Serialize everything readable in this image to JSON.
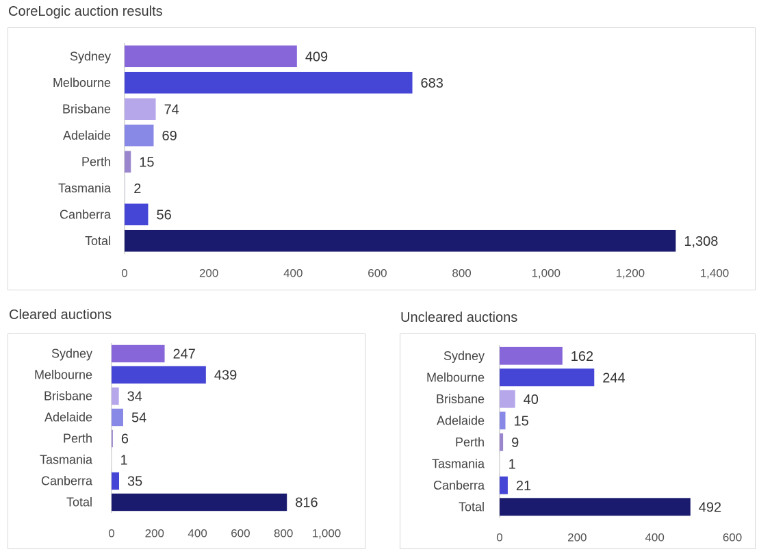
{
  "chart_data": [
    {
      "id": "main",
      "type": "bar",
      "orientation": "horizontal",
      "title": "CoreLogic auction results",
      "categories": [
        "Sydney",
        "Melbourne",
        "Brisbane",
        "Adelaide",
        "Perth",
        "Tasmania",
        "Canberra",
        "Total"
      ],
      "values": [
        409,
        683,
        74,
        69,
        15,
        2,
        56,
        1308
      ],
      "value_labels": [
        "409",
        "683",
        "74",
        "69",
        "15",
        "2",
        "56",
        "1,308"
      ],
      "xlim": [
        0,
        1400
      ],
      "ticks": [
        0,
        200,
        400,
        600,
        800,
        1000,
        1200,
        1400
      ],
      "tick_labels": [
        "0",
        "200",
        "400",
        "600",
        "800",
        "1,000",
        "1,200",
        "1,400"
      ],
      "grid": false,
      "legend": "none"
    },
    {
      "id": "cleared",
      "type": "bar",
      "orientation": "horizontal",
      "title": "Cleared auctions",
      "categories": [
        "Sydney",
        "Melbourne",
        "Brisbane",
        "Adelaide",
        "Perth",
        "Tasmania",
        "Canberra",
        "Total"
      ],
      "values": [
        247,
        439,
        34,
        54,
        6,
        1,
        35,
        816
      ],
      "value_labels": [
        "247",
        "439",
        "34",
        "54",
        "6",
        "1",
        "35",
        "816"
      ],
      "xlim": [
        0,
        1000
      ],
      "ticks": [
        0,
        200,
        400,
        600,
        800,
        1000
      ],
      "tick_labels": [
        "0",
        "200",
        "400",
        "600",
        "800",
        "1,000"
      ],
      "grid": false,
      "legend": "none"
    },
    {
      "id": "uncleared",
      "type": "bar",
      "orientation": "horizontal",
      "title": "Uncleared auctions",
      "categories": [
        "Sydney",
        "Melbourne",
        "Brisbane",
        "Adelaide",
        "Perth",
        "Tasmania",
        "Canberra",
        "Total"
      ],
      "values": [
        162,
        244,
        40,
        15,
        9,
        1,
        21,
        492
      ],
      "value_labels": [
        "162",
        "244",
        "40",
        "15",
        "9",
        "1",
        "21",
        "492"
      ],
      "xlim": [
        0,
        600
      ],
      "ticks": [
        0,
        200,
        400,
        600
      ],
      "tick_labels": [
        "0",
        "200",
        "400",
        "600"
      ],
      "grid": false,
      "legend": "none"
    }
  ],
  "colors": {
    "Sydney": "#8666d8",
    "Melbourne": "#4646d6",
    "Brisbane": "#b6a6ea",
    "Adelaide": "#8888e6",
    "Perth": "#9a86cc",
    "Tasmania": "#e4e4ee",
    "Canberra": "#4646d6",
    "Total": "#1a1a6e"
  }
}
